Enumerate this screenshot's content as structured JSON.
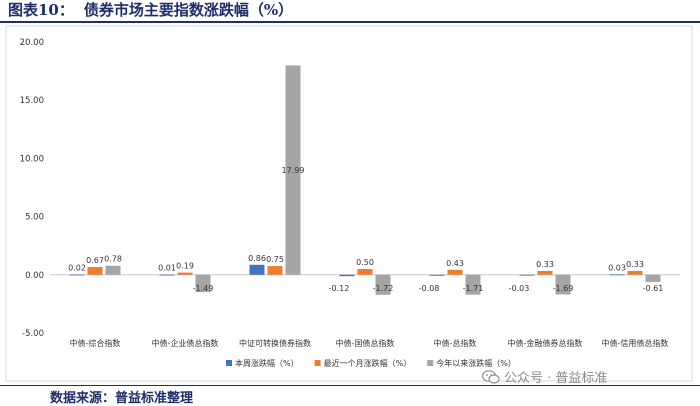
{
  "figure": {
    "label": "图表10：",
    "title": "债券市场主要指数涨跌幅（%）",
    "source": "数据来源：普益标准整理",
    "watermark": "公众号 · 普益标准"
  },
  "chart_data": {
    "type": "bar",
    "categories": [
      "中债-综合指数",
      "中债-企业债总指数",
      "中证可转换债券指数",
      "中债-国债总指数",
      "中债-总指数",
      "中债-金融债券总指数",
      "中债-信用债总指数"
    ],
    "series": [
      {
        "name": "本周涨跌幅（%）",
        "color": "#4472c4",
        "values": [
          0.02,
          0.01,
          0.86,
          -0.12,
          -0.08,
          -0.03,
          0.03
        ],
        "labels": [
          "0.02",
          "0.01",
          "0.86",
          "-0.12",
          "-0.08",
          "-0.03",
          "0.03"
        ]
      },
      {
        "name": "最近一个月涨跌幅（%）",
        "color": "#ed7d31",
        "values": [
          0.67,
          0.19,
          0.75,
          0.5,
          0.43,
          0.33,
          0.33
        ],
        "labels": [
          "0.67",
          "0.19",
          "0.75",
          "0.50",
          "0.43",
          "0.33",
          "0.33"
        ]
      },
      {
        "name": "今年以来涨跌幅（%）",
        "color": "#a5a5a5",
        "values": [
          0.78,
          -1.49,
          17.99,
          -1.72,
          -1.71,
          -1.69,
          -0.61
        ],
        "labels": [
          "0.78",
          "-1.49",
          "17.99",
          "-1.72",
          "-1.71",
          "-1.69",
          "-0.61"
        ]
      }
    ],
    "ylim": [
      -5,
      20
    ],
    "yticks": [
      "-5.00",
      "0.00",
      "5.00",
      "10.00",
      "15.00",
      "20.00"
    ],
    "legend_position": "bottom",
    "grid": false
  }
}
